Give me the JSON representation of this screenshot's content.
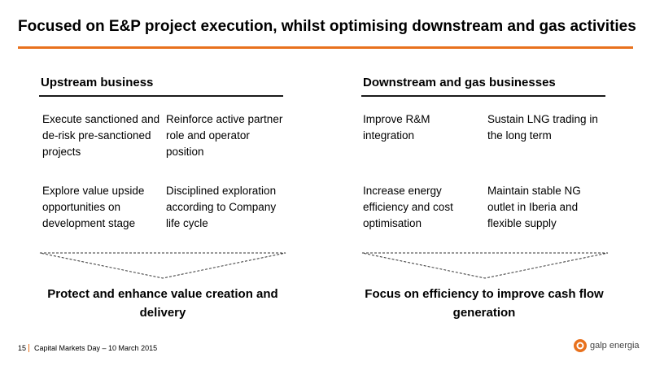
{
  "slide": {
    "title": "Focused on E&P project execution, whilst optimising downstream and gas activities"
  },
  "upstream": {
    "heading": "Upstream business",
    "items": [
      "Execute sanctioned and de-risk pre-sanctioned projects",
      "Reinforce active partner role and operator position",
      "Explore value upside opportunities on development stage",
      "Disciplined exploration according to Company life cycle"
    ],
    "outcome": "Protect and enhance value creation and delivery"
  },
  "downstream": {
    "heading": "Downstream and gas businesses",
    "items": [
      "Improve R&M integration",
      "Sustain LNG trading in the long term",
      "Increase energy efficiency and cost optimisation",
      "Maintain stable NG outlet in Iberia and flexible supply"
    ],
    "outcome": "Focus on efficiency to improve cash flow generation"
  },
  "footer": {
    "page": "15",
    "text": "Capital Markets Day – 10 March 2015"
  },
  "logo": {
    "text": "galp energia",
    "color": "#e8711d"
  },
  "colors": {
    "accent": "#e8711d"
  }
}
